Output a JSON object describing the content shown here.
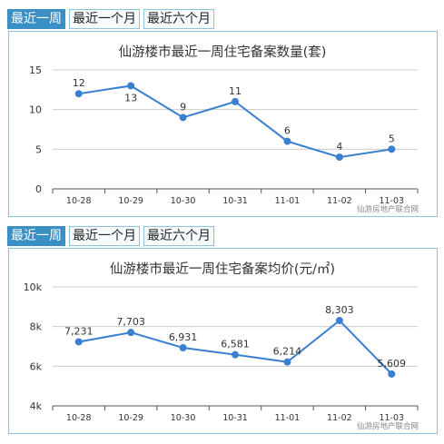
{
  "tabs": [
    "最近一周",
    "最近一个月",
    "最近六个月"
  ],
  "active_tab": 0,
  "source": "仙游房地产联合网",
  "colors": {
    "line": "#3a7fd0",
    "tab_active": "#3a8fc4",
    "grid": "#cccccc"
  },
  "chart_data": [
    {
      "type": "line",
      "title": "仙游楼市最近一周住宅备案数量(套)",
      "categories": [
        "10-28",
        "10-29",
        "10-30",
        "10-31",
        "11-01",
        "11-02",
        "11-03"
      ],
      "series": [
        {
          "values": [
            12,
            13,
            9,
            11,
            6,
            4,
            5
          ]
        }
      ],
      "data_labels": [
        "12",
        "13",
        "9",
        "11",
        "6",
        "4",
        "5"
      ],
      "label_pos": [
        "above",
        "below",
        "above",
        "above",
        "above",
        "above",
        "above"
      ],
      "yticks": [
        0,
        5,
        10,
        15
      ],
      "ytick_labels": [
        "0",
        "5",
        "10",
        "15"
      ],
      "ylim": [
        0,
        15
      ],
      "grid": true,
      "source": "仙游房地产联合网"
    },
    {
      "type": "line",
      "title": "仙游楼市最近一周住宅备案均价(元/㎡)",
      "categories": [
        "10-28",
        "10-29",
        "10-30",
        "10-31",
        "11-01",
        "11-02",
        "11-03"
      ],
      "series": [
        {
          "values": [
            7231,
            7703,
            6931,
            6581,
            6214,
            8303,
            5609
          ]
        }
      ],
      "data_labels": [
        "7,231",
        "7,703",
        "6,931",
        "6,581",
        "6,214",
        "8,303",
        "5,609"
      ],
      "label_pos": [
        "above",
        "above",
        "above",
        "above",
        "above",
        "above",
        "above"
      ],
      "yticks": [
        4000,
        6000,
        8000,
        10000
      ],
      "ytick_labels": [
        "4k",
        "6k",
        "8k",
        "10k"
      ],
      "ylim": [
        4000,
        10000
      ],
      "grid": true,
      "source": "仙游房地产联合网"
    }
  ]
}
